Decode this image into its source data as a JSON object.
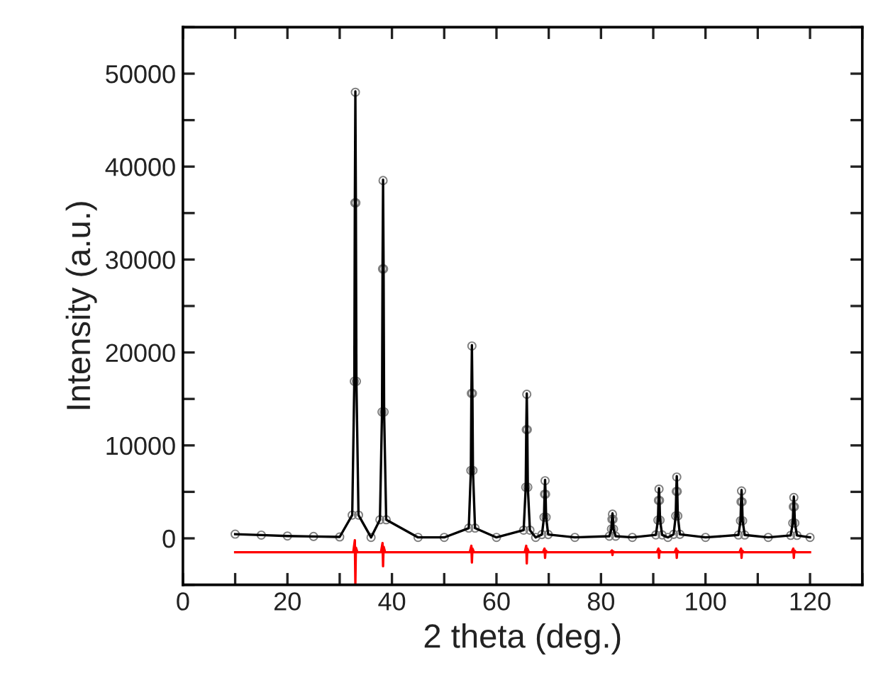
{
  "chart_data": {
    "type": "line",
    "xlabel": "2 theta (deg.)",
    "ylabel": "Intensity (a.u.)",
    "xlim": [
      0,
      130
    ],
    "ylim": [
      -5000,
      55000
    ],
    "xticks": [
      0,
      {
        "value": 10,
        "label": null
      },
      20,
      {
        "value": 30,
        "label": null
      },
      40,
      {
        "value": 50,
        "label": null
      },
      60,
      {
        "value": 70,
        "label": null
      },
      80,
      {
        "value": 90,
        "label": null
      },
      100,
      {
        "value": 110,
        "label": null
      },
      120,
      {
        "value": 130,
        "label": null
      }
    ],
    "yticks": [
      {
        "value": -5000,
        "label": null
      },
      0,
      {
        "value": 5000,
        "label": null
      },
      10000,
      {
        "value": 15000,
        "label": null
      },
      20000,
      {
        "value": 25000,
        "label": null
      },
      30000,
      {
        "value": 35000,
        "label": null
      },
      40000,
      {
        "value": 45000,
        "label": null
      },
      50000,
      {
        "value": 55000,
        "label": null
      }
    ],
    "grid": false,
    "legend": false,
    "x": [
      10,
      15,
      20,
      25,
      30,
      32.4,
      32.8,
      32.9,
      33.0,
      33.1,
      33.2,
      33.6,
      36,
      37.7,
      38.1,
      38.2,
      38.3,
      38.4,
      38.5,
      38.9,
      45,
      50,
      54.7,
      55.1,
      55.2,
      55.3,
      55.4,
      55.5,
      55.9,
      60,
      65.2,
      65.6,
      65.7,
      65.8,
      65.9,
      66.0,
      66.4,
      67.5,
      68.7,
      69.1,
      69.2,
      69.3,
      69.4,
      69.5,
      69.9,
      75,
      81.6,
      82.0,
      82.1,
      82.2,
      82.3,
      82.4,
      82.8,
      86,
      90.5,
      90.9,
      91.0,
      91.1,
      91.2,
      91.3,
      91.7,
      92.8,
      93.9,
      94.3,
      94.4,
      94.5,
      94.6,
      94.7,
      95.1,
      100,
      106.3,
      106.7,
      106.8,
      106.9,
      107.0,
      107.1,
      107.5,
      112,
      116.3,
      116.7,
      116.8,
      116.9,
      117.0,
      117.1,
      117.5,
      120
    ],
    "series": [
      {
        "type": "scatter",
        "color": "#7f7f7f",
        "marker": "circle",
        "values": [
          450,
          350,
          250,
          200,
          150,
          2500,
          16900,
          36100,
          48000,
          36100,
          16900,
          2500,
          100,
          2000,
          13600,
          29000,
          38500,
          29000,
          13600,
          2000,
          100,
          100,
          1100,
          7300,
          15600,
          20700,
          15600,
          7300,
          1100,
          100,
          880,
          5500,
          11700,
          15500,
          11700,
          5500,
          880,
          100,
          410,
          2270,
          4750,
          6200,
          4750,
          2270,
          410,
          100,
          230,
          1010,
          2050,
          2600,
          2050,
          1010,
          230,
          100,
          370,
          1960,
          4080,
          5300,
          4080,
          1960,
          370,
          100,
          430,
          2410,
          5050,
          6600,
          5050,
          2410,
          430,
          100,
          360,
          1890,
          3930,
          5100,
          3930,
          1890,
          360,
          100,
          320,
          1640,
          3400,
          4400,
          3400,
          1640,
          320,
          100
        ]
      },
      {
        "color": "#000000",
        "marker": "none",
        "line_style": "solid",
        "values": [
          450,
          350,
          250,
          200,
          150,
          2500,
          16900,
          36100,
          48100,
          36100,
          16900,
          2500,
          100,
          2000,
          13600,
          29000,
          38600,
          29000,
          13600,
          2000,
          100,
          100,
          1100,
          7300,
          15600,
          20800,
          15600,
          7300,
          1100,
          100,
          880,
          5500,
          11700,
          15600,
          11700,
          5500,
          880,
          100,
          410,
          2270,
          4750,
          6300,
          4750,
          2270,
          410,
          100,
          230,
          1010,
          2050,
          2700,
          2050,
          1010,
          230,
          100,
          370,
          1960,
          4080,
          5400,
          4080,
          1960,
          370,
          100,
          430,
          2410,
          5050,
          6700,
          5050,
          2410,
          430,
          100,
          360,
          1890,
          3930,
          5200,
          3930,
          1890,
          360,
          100,
          320,
          1640,
          3400,
          4500,
          3400,
          1640,
          320,
          100
        ]
      },
      {
        "color": "#ff0000",
        "marker": "none",
        "line_style": "solid",
        "x": [
          10,
          32.6,
          32.9,
          33.0,
          33.1,
          33.4,
          37.9,
          38.2,
          38.3,
          38.4,
          38.7,
          54.9,
          55.2,
          55.3,
          55.4,
          55.7,
          65.4,
          65.7,
          65.8,
          65.9,
          66.2,
          68.9,
          69.2,
          69.3,
          69.4,
          69.7,
          81.8,
          82.1,
          82.2,
          82.3,
          82.6,
          90.7,
          91.0,
          91.1,
          91.2,
          91.5,
          94.1,
          94.4,
          94.5,
          94.6,
          94.9,
          106.5,
          106.8,
          106.9,
          107.0,
          107.3,
          116.5,
          116.8,
          116.9,
          117.0,
          117.3,
          120
        ],
        "values": [
          -1500,
          -1500,
          -200,
          -4900,
          -1000,
          -1500,
          -1500,
          -500,
          -3000,
          -900,
          -1500,
          -1500,
          -800,
          -2600,
          -1100,
          -1500,
          -1500,
          -800,
          -2700,
          -1100,
          -1500,
          -1500,
          -1100,
          -2100,
          -1300,
          -1500,
          -1500,
          -1300,
          -1800,
          -1400,
          -1500,
          -1500,
          -1100,
          -2100,
          -1300,
          -1500,
          -1500,
          -1100,
          -2100,
          -1300,
          -1500,
          -1500,
          -1100,
          -2100,
          -1300,
          -1500,
          -1500,
          -1100,
          -2100,
          -1300,
          -1500,
          -1500
        ]
      }
    ]
  }
}
